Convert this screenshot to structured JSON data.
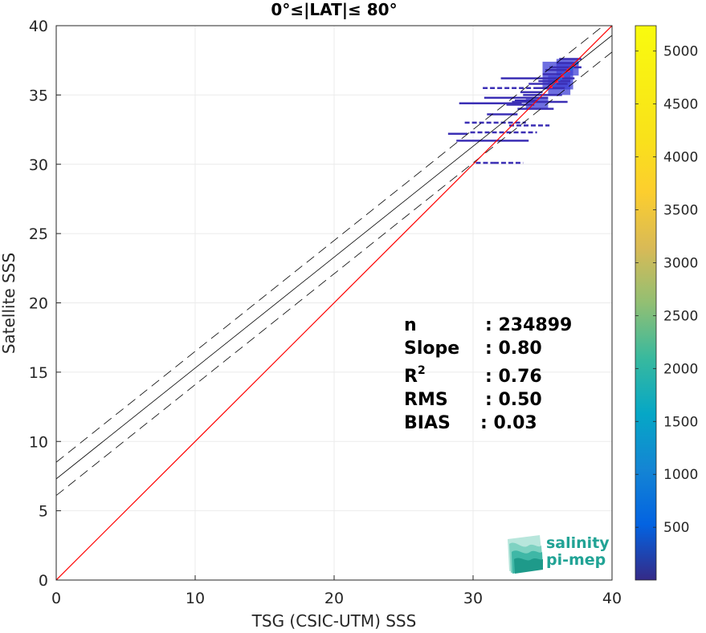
{
  "chart_data": {
    "type": "scatter",
    "title": "0°≤|LAT|≤ 80°",
    "xlabel": "TSG (CSIC-UTM) SSS",
    "ylabel": "Satellite SSS",
    "xlim": [
      0,
      40
    ],
    "ylim": [
      0,
      40
    ],
    "xticks": [
      "0",
      "10",
      "20",
      "30",
      "40"
    ],
    "yticks": [
      "0",
      "5",
      "10",
      "15",
      "20",
      "25",
      "30",
      "35",
      "40"
    ],
    "grid": true,
    "lines": {
      "identity": {
        "intercept": 0,
        "slope": 1,
        "color": "#ff0000"
      },
      "fit": {
        "intercept": 7.3,
        "slope": 0.8,
        "color": "#000000"
      },
      "fit_upper": {
        "intercept": 8.5,
        "slope": 0.8,
        "color": "#000000",
        "style": "dashed"
      },
      "fit_lower": {
        "intercept": 6.1,
        "slope": 0.8,
        "color": "#000000",
        "style": "dashed"
      }
    },
    "density_segments": [
      {
        "x0": 30.2,
        "x1": 31.5,
        "y": 30.1,
        "dotted": true
      },
      {
        "x0": 31.5,
        "x1": 33.6,
        "y": 30.1,
        "dotted": true
      },
      {
        "x0": 28.8,
        "x1": 34.0,
        "y": 31.7
      },
      {
        "x0": 28.2,
        "x1": 29.6,
        "y": 32.2
      },
      {
        "x0": 29.8,
        "x1": 34.6,
        "y": 32.3,
        "dotted": true
      },
      {
        "x0": 32.6,
        "x1": 35.5,
        "y": 32.8,
        "dotted": true
      },
      {
        "x0": 29.4,
        "x1": 33.8,
        "y": 33.0,
        "dotted": true
      },
      {
        "x0": 31.0,
        "x1": 33.2,
        "y": 33.6
      },
      {
        "x0": 33.2,
        "x1": 35.8,
        "y": 34.0
      },
      {
        "x0": 32.4,
        "x1": 34.4,
        "y": 34.3
      },
      {
        "x0": 29.0,
        "x1": 33.5,
        "y": 34.4
      },
      {
        "x0": 32.8,
        "x1": 36.8,
        "y": 34.5
      },
      {
        "x0": 33.0,
        "x1": 34.6,
        "y": 34.6
      },
      {
        "x0": 30.8,
        "x1": 35.4,
        "y": 34.8
      },
      {
        "x0": 33.6,
        "x1": 36.4,
        "y": 35.0
      },
      {
        "x0": 33.4,
        "x1": 35.0,
        "y": 35.2
      },
      {
        "x0": 34.4,
        "x1": 36.6,
        "y": 35.5
      },
      {
        "x0": 30.7,
        "x1": 34.6,
        "y": 35.5,
        "dotted": true
      },
      {
        "x0": 34.0,
        "x1": 36.8,
        "y": 35.8
      },
      {
        "x0": 34.7,
        "x1": 37.0,
        "y": 36.0
      },
      {
        "x0": 32.0,
        "x1": 37.3,
        "y": 36.2
      },
      {
        "x0": 35.0,
        "x1": 36.4,
        "y": 36.5
      },
      {
        "x0": 35.2,
        "x1": 37.0,
        "y": 36.8
      },
      {
        "x0": 35.5,
        "x1": 37.8,
        "y": 37.0
      },
      {
        "x0": 36.0,
        "x1": 37.6,
        "y": 37.3
      },
      {
        "x0": 36.2,
        "x1": 37.8,
        "y": 37.6
      }
    ],
    "density_clusters": [
      {
        "x0": 35.0,
        "x1": 37.2,
        "y0": 35.4,
        "y1": 37.4
      },
      {
        "x0": 35.4,
        "x1": 37.0,
        "y0": 35.0,
        "y1": 36.4
      },
      {
        "x0": 36.0,
        "x1": 37.6,
        "y0": 36.4,
        "y1": 37.6
      },
      {
        "x0": 33.8,
        "x1": 35.4,
        "y0": 34.0,
        "y1": 34.8
      }
    ],
    "stats": {
      "n": {
        "label": "n",
        "value": ": 234899"
      },
      "slope": {
        "label": "Slope",
        "value": ": 0.80"
      },
      "r2": {
        "label": "R",
        "sup": "2",
        "value": ": 0.76"
      },
      "rms": {
        "label": "RMS",
        "value": ": 0.50"
      },
      "bias": {
        "label": "BIAS",
        "value": ": 0.03"
      }
    },
    "colorbar": {
      "colormap": "parula",
      "range": [
        1,
        5240
      ],
      "ticks": [
        "500",
        "1000",
        "1500",
        "2000",
        "2500",
        "3000",
        "3500",
        "4000",
        "4500",
        "5000"
      ]
    }
  },
  "logo": {
    "line1": "salinity",
    "line2": "pi-mep"
  }
}
